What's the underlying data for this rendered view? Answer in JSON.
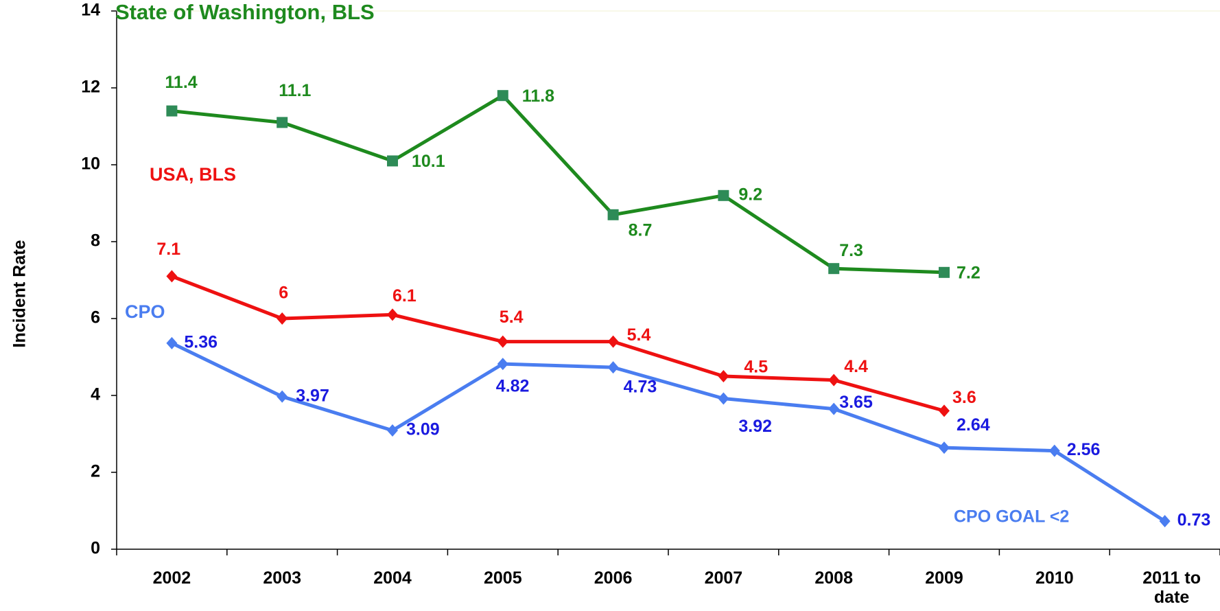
{
  "chart_data": {
    "type": "line",
    "y_label": "Incident Rate",
    "annotation": "CPO GOAL <2",
    "categories": [
      "2002",
      "2003",
      "2004",
      "2005",
      "2006",
      "2007",
      "2008",
      "2009",
      "2010",
      "2011 to date"
    ],
    "series": [
      {
        "name": "State of Washington, BLS",
        "color": "#1e8a1e",
        "marker_color": "#2e8b57",
        "label_color": "#1e8a1e",
        "marker": "square",
        "values": [
          11.4,
          11.1,
          10.1,
          11.8,
          8.7,
          9.2,
          7.3,
          7.2,
          null,
          null
        ]
      },
      {
        "name": "USA, BLS",
        "color": "#ee1111",
        "marker_color": "#ee1111",
        "label_color": "#ee1111",
        "marker": "diamond",
        "values": [
          7.1,
          6,
          6.1,
          5.4,
          5.4,
          4.5,
          4.4,
          3.6,
          null,
          null
        ]
      },
      {
        "name": "CPO",
        "color": "#4a7df0",
        "marker_color": "#4a7df0",
        "label_color": "#1a1adf",
        "marker": "diamond",
        "values": [
          5.36,
          3.97,
          3.09,
          4.82,
          4.73,
          3.92,
          3.65,
          2.64,
          2.56,
          0.73
        ]
      }
    ],
    "ylim": [
      0,
      14
    ],
    "yticks": [
      0,
      2,
      4,
      6,
      8,
      10,
      12,
      14
    ]
  }
}
